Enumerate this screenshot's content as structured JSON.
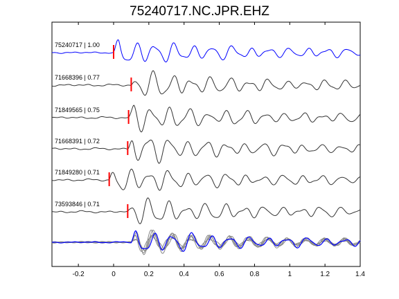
{
  "chart_data": {
    "type": "line",
    "title": "75240717.NC.JPR.EHZ",
    "xlabel": "",
    "ylabel": "",
    "xlim": [
      -0.35,
      1.4
    ],
    "xticks": [
      -0.2,
      0,
      0.2,
      0.4,
      0.6,
      0.8,
      1,
      1.2,
      1.4
    ],
    "xtick_labels": [
      "-0.2",
      "0",
      "0.2",
      "0.4",
      "0.6",
      "0.8",
      "1",
      "1.2",
      "1.4"
    ],
    "grid": false,
    "colors": {
      "reference": "#0000ff",
      "trace": "#333333",
      "stack": "#888888",
      "pick": "#ff0000",
      "axes": "#000000"
    },
    "series": [
      {
        "label": "75240717 | 1.00",
        "pick_time": 0.0,
        "color": "#0000ff"
      },
      {
        "label": "71668396 | 0.77",
        "pick_time": 0.1,
        "color": "#333333"
      },
      {
        "label": "71849565 | 0.75",
        "pick_time": 0.085,
        "color": "#333333"
      },
      {
        "label": "71668391 | 0.72",
        "pick_time": 0.08,
        "color": "#333333"
      },
      {
        "label": "71849280 | 0.71",
        "pick_time": -0.025,
        "color": "#333333"
      },
      {
        "label": "73593846 | 0.71",
        "pick_time": 0.08,
        "color": "#333333"
      }
    ]
  }
}
